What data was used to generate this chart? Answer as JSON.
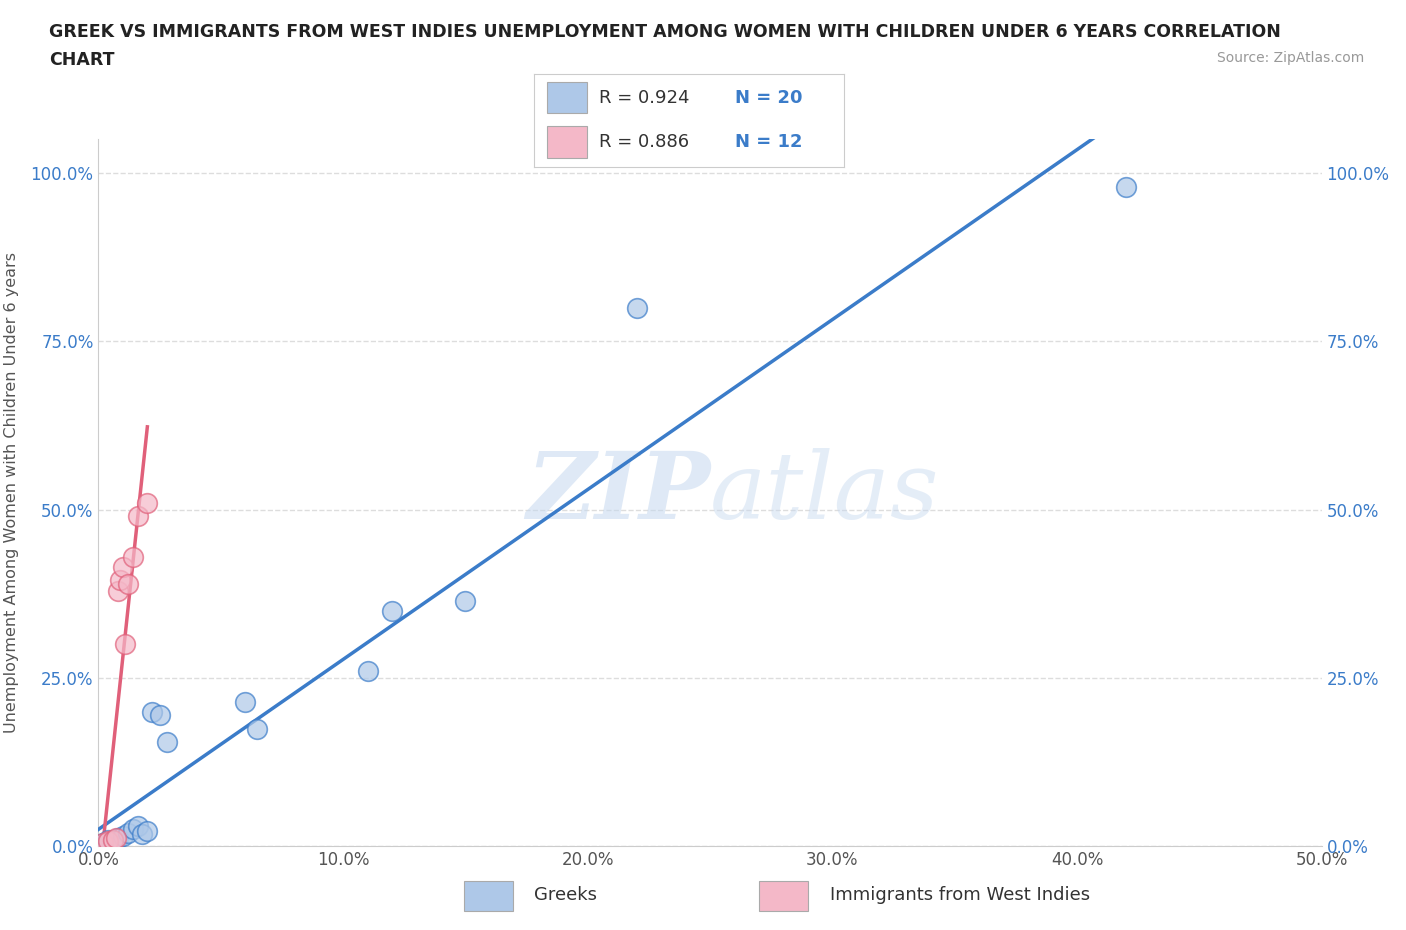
{
  "title_line1": "GREEK VS IMMIGRANTS FROM WEST INDIES UNEMPLOYMENT AMONG WOMEN WITH CHILDREN UNDER 6 YEARS CORRELATION",
  "title_line2": "CHART",
  "source": "Source: ZipAtlas.com",
  "ylabel": "Unemployment Among Women with Children Under 6 years",
  "xlim": [
    0,
    0.5
  ],
  "ylim": [
    0,
    1.05
  ],
  "xticks": [
    0.0,
    0.1,
    0.2,
    0.3,
    0.4,
    0.5
  ],
  "xticklabels": [
    "0.0%",
    "10.0%",
    "20.0%",
    "30.0%",
    "40.0%",
    "50.0%"
  ],
  "yticks": [
    0.0,
    0.25,
    0.5,
    0.75,
    1.0
  ],
  "yticklabels": [
    "0.0%",
    "25.0%",
    "50.0%",
    "75.0%",
    "100.0%"
  ],
  "greek_color": "#aec8e8",
  "pink_color": "#f4b8c8",
  "greek_line_color": "#3b7cc9",
  "pink_line_color": "#e0607a",
  "legend_R1": "R = 0.924",
  "legend_N1": "N = 20",
  "legend_R2": "R = 0.886",
  "legend_N2": "N = 12",
  "greeks_x": [
    0.002,
    0.004,
    0.006,
    0.008,
    0.01,
    0.012,
    0.014,
    0.016,
    0.018,
    0.02,
    0.022,
    0.025,
    0.028,
    0.06,
    0.065,
    0.11,
    0.12,
    0.15,
    0.22,
    0.42
  ],
  "greeks_y": [
    0.005,
    0.01,
    0.008,
    0.012,
    0.015,
    0.02,
    0.025,
    0.03,
    0.018,
    0.022,
    0.2,
    0.195,
    0.155,
    0.215,
    0.175,
    0.26,
    0.35,
    0.365,
    0.8,
    0.98
  ],
  "westindies_x": [
    0.002,
    0.004,
    0.006,
    0.007,
    0.008,
    0.009,
    0.01,
    0.011,
    0.012,
    0.014,
    0.016,
    0.02
  ],
  "westindies_y": [
    0.005,
    0.008,
    0.01,
    0.012,
    0.38,
    0.395,
    0.415,
    0.3,
    0.39,
    0.43,
    0.49,
    0.51
  ]
}
